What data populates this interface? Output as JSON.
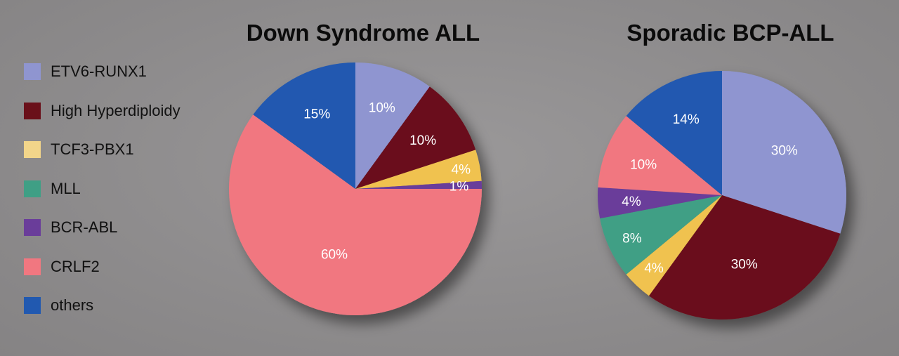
{
  "legend": [
    {
      "label": "ETV6-RUNX1",
      "color": "#8f95d0"
    },
    {
      "label": "High Hyperdiploidy",
      "color": "#6a101a"
    },
    {
      "label": "TCF3-PBX1",
      "color": "#f2d58a"
    },
    {
      "label": "MLL",
      "color": "#3f9f85"
    },
    {
      "label": "BCR-ABL",
      "color": "#6a3d9a"
    },
    {
      "label": "CRLF2",
      "color": "#f17780"
    },
    {
      "label": "others",
      "color": "#2159b0"
    }
  ],
  "chart_data": [
    {
      "type": "pie",
      "title": "Down Syndrome ALL",
      "categories": [
        "ETV6-RUNX1",
        "High Hyperdiploidy",
        "TCF3-PBX1",
        "BCR-ABL",
        "CRLF2",
        "others"
      ],
      "values": [
        10,
        10,
        4,
        1,
        60,
        15
      ],
      "labels": [
        "10%",
        "10%",
        "4%",
        "1%",
        "60%",
        "15%"
      ],
      "colors": [
        "#8f95d0",
        "#6a101a",
        "#f0c24f",
        "#6a3d9a",
        "#f17780",
        "#2159b0"
      ]
    },
    {
      "type": "pie",
      "title": "Sporadic BCP-ALL",
      "categories": [
        "ETV6-RUNX1",
        "High Hyperdiploidy",
        "TCF3-PBX1",
        "MLL",
        "BCR-ABL",
        "CRLF2",
        "others"
      ],
      "values": [
        30,
        30,
        4,
        8,
        4,
        10,
        14
      ],
      "labels": [
        "30%",
        "30%",
        "4%",
        "8%",
        "4%",
        "10%",
        "14%"
      ],
      "colors": [
        "#8f95d0",
        "#6a101a",
        "#f0c24f",
        "#3f9f85",
        "#6a3d9a",
        "#f17780",
        "#2159b0"
      ]
    }
  ]
}
